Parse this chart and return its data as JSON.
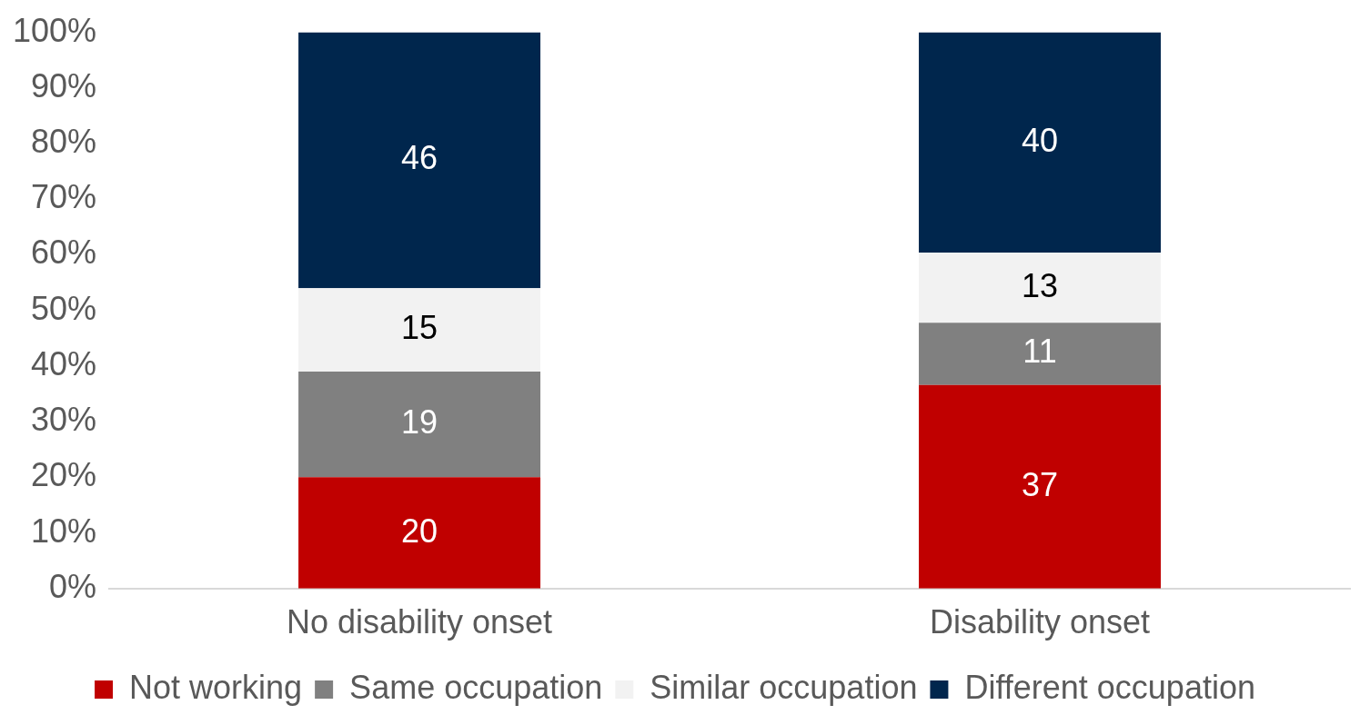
{
  "chart_data": {
    "type": "bar",
    "stacked": true,
    "categories": [
      "No disability onset",
      "Disability onset"
    ],
    "series": [
      {
        "name": "Not working",
        "color": "#c00000",
        "values": [
          20,
          36.6
        ],
        "value_labels": [
          "20",
          "37"
        ]
      },
      {
        "name": "Same occupation",
        "color": "#808080",
        "values": [
          19,
          11.2
        ],
        "value_labels": [
          "19",
          "11"
        ]
      },
      {
        "name": "Similar occupation",
        "color": "#f2f2f2",
        "values": [
          15,
          12.6
        ],
        "value_labels": [
          "15",
          "13"
        ]
      },
      {
        "name": "Different occupation",
        "color": "#00264d",
        "values": [
          46,
          39.6
        ],
        "value_labels": [
          "46",
          "40"
        ]
      }
    ],
    "ylim": [
      0,
      100
    ],
    "yticks": [
      {
        "value": 0,
        "label": "0%"
      },
      {
        "value": 10,
        "label": "10%"
      },
      {
        "value": 20,
        "label": "20%"
      },
      {
        "value": 30,
        "label": "30%"
      },
      {
        "value": 40,
        "label": "40%"
      },
      {
        "value": 50,
        "label": "50%"
      },
      {
        "value": 60,
        "label": "60%"
      },
      {
        "value": 70,
        "label": "70%"
      },
      {
        "value": 80,
        "label": "80%"
      },
      {
        "value": 90,
        "label": "90%"
      },
      {
        "value": 100,
        "label": "100%"
      }
    ],
    "grid": false,
    "legend": "bottom"
  }
}
